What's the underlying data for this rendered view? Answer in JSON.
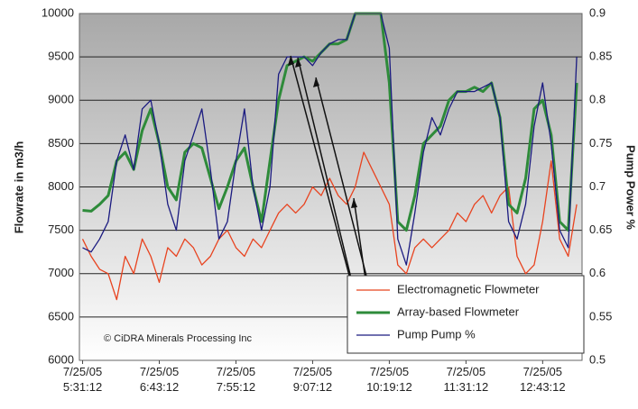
{
  "chart_data": {
    "type": "line",
    "y_label": "Flowrate in m3/h",
    "y2_label": "Pump Power %",
    "annotation": "© CiDRA Minerals Processing Inc",
    "x": [
      0,
      8,
      16,
      24,
      32,
      40,
      48,
      56,
      64,
      72,
      80,
      88,
      96,
      104,
      112,
      120,
      128,
      136,
      144,
      152,
      160,
      168,
      176,
      184,
      192,
      200,
      208,
      216,
      224,
      232,
      240,
      248,
      256,
      264,
      272,
      280,
      288,
      296,
      304,
      312,
      320,
      328,
      336,
      344,
      352,
      360,
      368,
      376,
      384,
      392,
      400,
      408,
      416,
      424,
      432,
      440,
      448,
      456,
      464
    ],
    "xlim": [
      -3,
      469
    ],
    "xticks": [
      {
        "value": 0,
        "label": "7/25/05\n5:31:12"
      },
      {
        "value": 72,
        "label": "7/25/05\n6:43:12"
      },
      {
        "value": 144,
        "label": "7/25/05\n7:55:12"
      },
      {
        "value": 216,
        "label": "7/25/05\n9:07:12"
      },
      {
        "value": 288,
        "label": "7/25/05\n10:19:12"
      },
      {
        "value": 360,
        "label": "7/25/05\n11:31:12"
      },
      {
        "value": 432,
        "label": "7/25/05\n12:43:12"
      }
    ],
    "ylim": [
      6000,
      10000
    ],
    "yticks": [
      6000,
      6500,
      7000,
      7500,
      8000,
      8500,
      9000,
      9500,
      10000
    ],
    "y2lim": [
      0.5,
      0.9
    ],
    "y2ticks": [
      0.5,
      0.55,
      0.6,
      0.65,
      0.7,
      0.75,
      0.8,
      0.85,
      0.9
    ],
    "grid": true,
    "series": [
      {
        "name": "Electromagnetic Flowmeter",
        "color": "#e8431f",
        "width": 1.3,
        "values": [
          7400,
          7200,
          7050,
          7000,
          6700,
          7200,
          7000,
          7400,
          7200,
          6900,
          7300,
          7200,
          7400,
          7300,
          7100,
          7200,
          7400,
          7500,
          7300,
          7200,
          7400,
          7300,
          7500,
          7700,
          7800,
          7700,
          7800,
          8000,
          7900,
          8100,
          7900,
          7800,
          8000,
          8400,
          8200,
          8000,
          7800,
          7100,
          7000,
          7300,
          7400,
          7300,
          7400,
          7500,
          7700,
          7600,
          7800,
          7900,
          7700,
          7900,
          8000,
          7200,
          7000,
          7100,
          7600,
          8300,
          7400,
          7200,
          7800
        ]
      },
      {
        "name": "Array-based Flowmeter",
        "color": "#2e8b3a",
        "width": 3,
        "values": [
          7730,
          7720,
          7800,
          7900,
          8300,
          8400,
          8200,
          8650,
          8900,
          8500,
          8000,
          7850,
          8400,
          8500,
          8450,
          8100,
          7750,
          8000,
          8300,
          8450,
          8000,
          7600,
          8300,
          9000,
          9400,
          9450,
          9500,
          9450,
          9550,
          9650,
          9650,
          9700,
          10000,
          10000,
          10000,
          10000,
          9200,
          7600,
          7500,
          7900,
          8500,
          8600,
          8700,
          9000,
          9100,
          9100,
          9150,
          9100,
          9200,
          8800,
          7800,
          7700,
          8100,
          8900,
          9000,
          8600,
          7600,
          7500,
          9200
        ]
      },
      {
        "name": "Pump Pump %",
        "color": "#1a1a80",
        "width": 1.3,
        "axis": "y2",
        "values": [
          0.63,
          0.625,
          0.64,
          0.66,
          0.73,
          0.76,
          0.72,
          0.79,
          0.8,
          0.75,
          0.68,
          0.65,
          0.73,
          0.76,
          0.79,
          0.72,
          0.64,
          0.66,
          0.73,
          0.79,
          0.7,
          0.65,
          0.7,
          0.83,
          0.85,
          0.85,
          0.85,
          0.84,
          0.855,
          0.865,
          0.87,
          0.87,
          0.9,
          0.9,
          0.9,
          0.9,
          0.86,
          0.64,
          0.61,
          0.67,
          0.74,
          0.78,
          0.76,
          0.79,
          0.81,
          0.81,
          0.81,
          0.815,
          0.82,
          0.78,
          0.66,
          0.64,
          0.68,
          0.77,
          0.82,
          0.75,
          0.65,
          0.63,
          0.85
        ]
      }
    ]
  }
}
